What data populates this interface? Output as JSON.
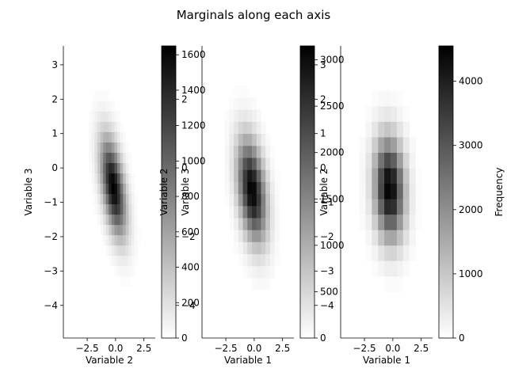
{
  "figure": {
    "title": "Marginals along each axis"
  },
  "chart_data": [
    {
      "type": "heatmap",
      "xlabel": "Variable 2",
      "ylabel": "Variable 3",
      "xlim": [
        -4.6,
        3.5
      ],
      "ylim": [
        -4.95,
        3.55
      ],
      "xticks": [
        "−2.5",
        "0.0",
        "2.5"
      ],
      "xtick_values": [
        -2.5,
        0.0,
        2.5
      ],
      "yticks": [
        "−4",
        "−3",
        "−2",
        "−1",
        "0",
        "1",
        "2",
        "3"
      ],
      "ytick_values": [
        -4,
        -3,
        -2,
        -1,
        0,
        1,
        2,
        3
      ],
      "distribution": {
        "mean_x": -0.2,
        "mean_y": -0.55,
        "sd_x": 0.75,
        "sd_y": 0.95,
        "correlation": -0.5,
        "peak": 1650,
        "bin_width_x": 0.25,
        "bin_width_y": 0.3
      },
      "colorbar": {
        "label": "Variable 3",
        "range": [
          0,
          1650
        ],
        "ticks": [
          "0",
          "200",
          "400",
          "600",
          "800",
          "1000",
          "1200",
          "1400",
          "1600"
        ],
        "tick_values": [
          0,
          200,
          400,
          600,
          800,
          1000,
          1200,
          1400,
          1600
        ],
        "secondary_ticks": [
          "−4",
          "−2",
          "0",
          "2"
        ],
        "secondary_tick_values": [
          -4,
          -2,
          0,
          2
        ],
        "secondary_range": [
          -4.95,
          3.55
        ]
      },
      "grid": false,
      "colormap": "gray_r"
    },
    {
      "type": "heatmap",
      "xlabel": "Variable 1",
      "ylabel": "Variable 2",
      "xlim": [
        -4.6,
        3.5
      ],
      "ylim": [
        -4.95,
        3.55
      ],
      "xticks": [
        "−2.5",
        "0.0",
        "2.5"
      ],
      "xtick_values": [
        -2.5,
        0.0,
        2.5
      ],
      "yticks": [],
      "ytick_values": [],
      "distribution": {
        "mean_x": -0.2,
        "mean_y": -0.65,
        "sd_x": 0.85,
        "sd_y": 1.0,
        "correlation": -0.35,
        "peak": 3100,
        "bin_width_x": 0.4,
        "bin_width_y": 0.35
      },
      "colorbar": {
        "label": "Variable 2",
        "range": [
          0,
          3150
        ],
        "ticks": [
          "0",
          "500",
          "1000",
          "1500",
          "2000",
          "2500",
          "3000"
        ],
        "tick_values": [
          0,
          500,
          1000,
          1500,
          2000,
          2500,
          3000
        ],
        "secondary_ticks": [
          "−4",
          "−3",
          "−2",
          "−1",
          "0",
          "1",
          "2",
          "3"
        ],
        "secondary_tick_values": [
          -4,
          -3,
          -2,
          -1,
          0,
          1,
          2,
          3
        ],
        "secondary_range": [
          -4.95,
          3.55
        ]
      },
      "grid": false,
      "colormap": "gray_r"
    },
    {
      "type": "heatmap",
      "xlabel": "Variable 1",
      "ylabel": "",
      "xlim": [
        -4.6,
        3.5
      ],
      "ylim": [
        -4.95,
        3.55
      ],
      "xticks": [
        "−2.5",
        "0.0",
        "2.5"
      ],
      "xtick_values": [
        -2.5,
        0.0,
        2.5
      ],
      "yticks": [],
      "ytick_values": [],
      "distribution": {
        "mean_x": -0.3,
        "mean_y": -0.6,
        "sd_x": 0.9,
        "sd_y": 1.0,
        "correlation": -0.1,
        "peak": 4550,
        "bin_width_x": 0.55,
        "bin_width_y": 0.45
      },
      "colorbar": {
        "label": "Frequency",
        "range": [
          0,
          4550
        ],
        "ticks": [
          "0",
          "1000",
          "2000",
          "3000",
          "4000"
        ],
        "tick_values": [
          0,
          1000,
          2000,
          3000,
          4000
        ]
      },
      "grid": false,
      "colormap": "gray_r"
    }
  ]
}
